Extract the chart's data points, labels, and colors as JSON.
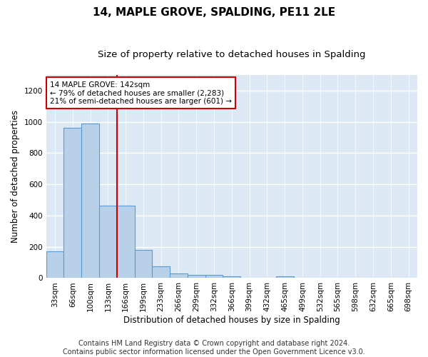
{
  "title": "14, MAPLE GROVE, SPALDING, PE11 2LE",
  "subtitle": "Size of property relative to detached houses in Spalding",
  "xlabel": "Distribution of detached houses by size in Spalding",
  "ylabel": "Number of detached properties",
  "categories": [
    "33sqm",
    "66sqm",
    "100sqm",
    "133sqm",
    "166sqm",
    "199sqm",
    "233sqm",
    "266sqm",
    "299sqm",
    "332sqm",
    "366sqm",
    "399sqm",
    "432sqm",
    "465sqm",
    "499sqm",
    "532sqm",
    "565sqm",
    "598sqm",
    "632sqm",
    "665sqm",
    "698sqm"
  ],
  "values": [
    170,
    960,
    990,
    465,
    465,
    182,
    75,
    30,
    22,
    22,
    13,
    0,
    0,
    13,
    0,
    0,
    0,
    0,
    0,
    0,
    0
  ],
  "bar_color": "#b8d0e8",
  "bar_edge_color": "#5b9bd5",
  "red_line_x": 3.5,
  "annotation_line1": "14 MAPLE GROVE: 142sqm",
  "annotation_line2": "← 79% of detached houses are smaller (2,283)",
  "annotation_line3": "21% of semi-detached houses are larger (601) →",
  "footer_line1": "Contains HM Land Registry data © Crown copyright and database right 2024.",
  "footer_line2": "Contains public sector information licensed under the Open Government Licence v3.0.",
  "ylim": [
    0,
    1300
  ],
  "yticks": [
    0,
    200,
    400,
    600,
    800,
    1000,
    1200
  ],
  "background_color": "#dce9f5",
  "grid_color": "#ffffff",
  "title_fontsize": 11,
  "subtitle_fontsize": 9.5,
  "axis_label_fontsize": 8.5,
  "tick_fontsize": 7.5,
  "footer_fontsize": 7
}
